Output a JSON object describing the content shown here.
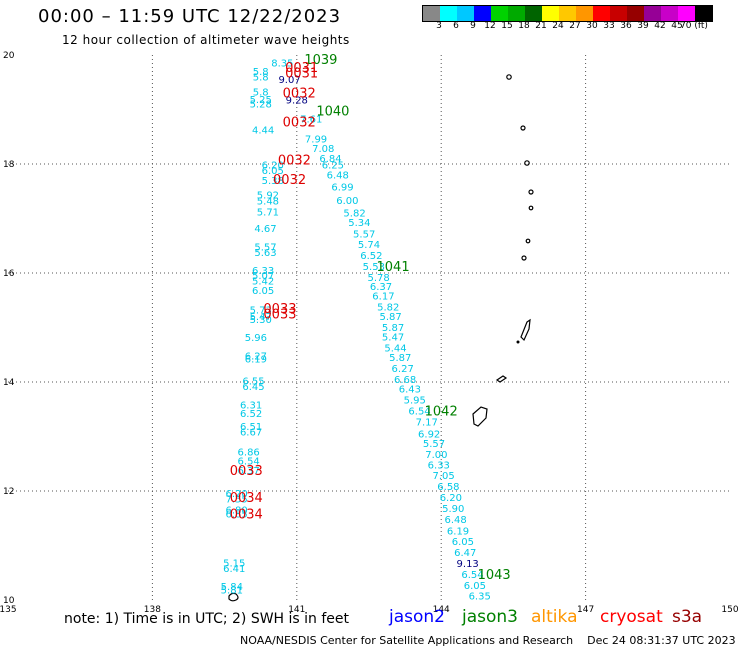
{
  "header": {
    "title": "00:00 – 11:59 UTC 12/22/2023",
    "subtitle": "12 hour collection of altimeter wave heights"
  },
  "colorbar": {
    "colors": [
      "#888888",
      "#00ffff",
      "#00c8ff",
      "#0000ff",
      "#00d200",
      "#00aa00",
      "#006400",
      "#ffff00",
      "#ffc800",
      "#ff9600",
      "#ff0000",
      "#c80000",
      "#960000",
      "#960096",
      "#c800c8",
      "#ff00ff",
      "#000000"
    ],
    "labels": [
      "3",
      "6",
      "9",
      "12",
      "15",
      "18",
      "21",
      "24",
      "27",
      "30",
      "33",
      "36",
      "39",
      "42",
      "45",
      "70 (ft)"
    ]
  },
  "footer": {
    "note": "note: 1) Time is in UTC; 2) SWH is in feet",
    "missions": [
      {
        "name": "jason2",
        "color": "#0000ff"
      },
      {
        "name": "jason3",
        "color": "#008000"
      },
      {
        "name": "altika",
        "color": "#ff9600"
      },
      {
        "name": "cryosat",
        "color": "#ff0000"
      },
      {
        "name": "s3a",
        "color": "#960000"
      }
    ],
    "credit": "NOAA/NESDIS Center for Satellite Applications and Research    Dec 24 08:31:37 UTC 2023"
  },
  "chart_data": {
    "type": "scatter",
    "title": "00:00 – 11:59 UTC 12/22/2023",
    "subtitle": "12 hour collection of altimeter wave heights",
    "xlim": [
      135,
      150
    ],
    "ylim": [
      10,
      20
    ],
    "x_ticks": [
      135,
      138,
      141,
      144,
      147,
      150
    ],
    "y_ticks": [
      10,
      12,
      14,
      16,
      18,
      20
    ],
    "grid": true,
    "colors": {
      "cyan": "#00c8e6",
      "green": "#008000",
      "red": "#dd0000",
      "navy": "#000080",
      "land": "#000000"
    },
    "series": [
      {
        "name": "track-west-descending",
        "points": [
          {
            "lon": 140.7,
            "lat": 19.85,
            "label": "8.35"
          },
          {
            "lon": 140.25,
            "lat": 19.7,
            "label": "5.8"
          },
          {
            "lon": 140.25,
            "lat": 19.6,
            "label": "5.8"
          },
          {
            "lon": 140.25,
            "lat": 19.32,
            "label": "5.8"
          },
          {
            "lon": 140.25,
            "lat": 19.18,
            "label": "5.25"
          },
          {
            "lon": 140.25,
            "lat": 19.1,
            "label": "5.28"
          },
          {
            "lon": 140.3,
            "lat": 18.62,
            "label": "4.44"
          },
          {
            "lon": 140.5,
            "lat": 17.98,
            "label": "6.20"
          },
          {
            "lon": 140.5,
            "lat": 17.88,
            "label": "6.05"
          },
          {
            "lon": 140.5,
            "lat": 17.7,
            "label": "5.38"
          },
          {
            "lon": 140.4,
            "lat": 17.43,
            "label": "5.92"
          },
          {
            "lon": 140.4,
            "lat": 17.32,
            "label": "5.48"
          },
          {
            "lon": 140.4,
            "lat": 17.12,
            "label": "5.71"
          },
          {
            "lon": 140.35,
            "lat": 16.82,
            "label": "4.67"
          },
          {
            "lon": 140.35,
            "lat": 16.48,
            "label": "5.57"
          },
          {
            "lon": 140.35,
            "lat": 16.38,
            "label": "5.63"
          },
          {
            "lon": 140.3,
            "lat": 16.05,
            "label": "6.33"
          },
          {
            "lon": 140.3,
            "lat": 15.95,
            "label": "5.07"
          },
          {
            "lon": 140.3,
            "lat": 15.85,
            "label": "5.42"
          },
          {
            "lon": 140.3,
            "lat": 15.68,
            "label": "6.05"
          },
          {
            "lon": 140.25,
            "lat": 15.32,
            "label": "5.73"
          },
          {
            "lon": 140.25,
            "lat": 15.2,
            "label": "5.47"
          },
          {
            "lon": 140.25,
            "lat": 15.15,
            "label": "5.30"
          },
          {
            "lon": 140.15,
            "lat": 14.82,
            "label": "5.96"
          },
          {
            "lon": 140.15,
            "lat": 14.48,
            "label": "6.27"
          },
          {
            "lon": 140.15,
            "lat": 14.42,
            "label": "6.19"
          },
          {
            "lon": 140.1,
            "lat": 14.02,
            "label": "6.55"
          },
          {
            "lon": 140.1,
            "lat": 13.92,
            "label": "6.45"
          },
          {
            "lon": 140.05,
            "lat": 13.58,
            "label": "6.31"
          },
          {
            "lon": 140.05,
            "lat": 13.42,
            "label": "6.52"
          },
          {
            "lon": 140.05,
            "lat": 13.18,
            "label": "6.51"
          },
          {
            "lon": 140.05,
            "lat": 13.08,
            "label": "6.67"
          },
          {
            "lon": 140.0,
            "lat": 12.72,
            "label": "6.86"
          },
          {
            "lon": 140.0,
            "lat": 12.55,
            "label": "6.54"
          },
          {
            "lon": 140.0,
            "lat": 12.38,
            "label": "6.37"
          },
          {
            "lon": 139.75,
            "lat": 11.95,
            "label": "6.20"
          },
          {
            "lon": 139.75,
            "lat": 11.85,
            "label": "7.55"
          },
          {
            "lon": 139.75,
            "lat": 11.65,
            "label": "6.80"
          },
          {
            "lon": 139.75,
            "lat": 11.58,
            "label": "6.85"
          },
          {
            "lon": 139.7,
            "lat": 10.68,
            "label": "5.15"
          },
          {
            "lon": 139.7,
            "lat": 10.58,
            "label": "6.41"
          },
          {
            "lon": 139.65,
            "lat": 10.25,
            "label": "5.84"
          },
          {
            "lon": 139.65,
            "lat": 10.18,
            "label": "5.81"
          }
        ]
      },
      {
        "name": "track-east-descending",
        "points": [
          {
            "lon": 140.85,
            "lat": 19.55,
            "label": "9.07"
          },
          {
            "lon": 141.0,
            "lat": 19.17,
            "label": "9.28"
          },
          {
            "lon": 141.3,
            "lat": 18.83,
            "label": "7.61"
          },
          {
            "lon": 141.4,
            "lat": 18.46,
            "label": "7.99"
          },
          {
            "lon": 141.55,
            "lat": 18.28,
            "label": "7.08"
          },
          {
            "lon": 141.7,
            "lat": 18.1,
            "label": "6.84"
          },
          {
            "lon": 141.75,
            "lat": 17.98,
            "label": "6.25"
          },
          {
            "lon": 141.85,
            "lat": 17.8,
            "label": "6.48"
          },
          {
            "lon": 141.95,
            "lat": 17.58,
            "label": "6.99"
          },
          {
            "lon": 142.05,
            "lat": 17.33,
            "label": "6.00"
          },
          {
            "lon": 142.2,
            "lat": 17.1,
            "label": "5.82"
          },
          {
            "lon": 142.3,
            "lat": 16.93,
            "label": "5.34"
          },
          {
            "lon": 142.4,
            "lat": 16.72,
            "label": "5.57"
          },
          {
            "lon": 142.5,
            "lat": 16.52,
            "label": "5.74"
          },
          {
            "lon": 142.55,
            "lat": 16.32,
            "label": "6.52"
          },
          {
            "lon": 142.6,
            "lat": 16.12,
            "label": "5.53"
          },
          {
            "lon": 142.7,
            "lat": 15.92,
            "label": "5.78"
          },
          {
            "lon": 142.75,
            "lat": 15.75,
            "label": "6.37"
          },
          {
            "lon": 142.8,
            "lat": 15.58,
            "label": "6.17"
          },
          {
            "lon": 142.9,
            "lat": 15.38,
            "label": "5.82"
          },
          {
            "lon": 142.95,
            "lat": 15.2,
            "label": "5.87"
          },
          {
            "lon": 143.0,
            "lat": 15.0,
            "label": "5.87"
          },
          {
            "lon": 143.0,
            "lat": 14.83,
            "label": "5.47"
          },
          {
            "lon": 143.05,
            "lat": 14.62,
            "label": "5.44"
          },
          {
            "lon": 143.15,
            "lat": 14.45,
            "label": "5.87"
          },
          {
            "lon": 143.2,
            "lat": 14.25,
            "label": "6.27"
          },
          {
            "lon": 143.25,
            "lat": 14.05,
            "label": "6.68"
          },
          {
            "lon": 143.35,
            "lat": 13.87,
            "label": "6.43"
          },
          {
            "lon": 143.45,
            "lat": 13.67,
            "label": "5.95"
          },
          {
            "lon": 143.55,
            "lat": 13.47,
            "label": "6.54"
          },
          {
            "lon": 143.7,
            "lat": 13.27,
            "label": "7.17"
          },
          {
            "lon": 143.75,
            "lat": 13.05,
            "label": "6.92"
          },
          {
            "lon": 143.85,
            "lat": 12.87,
            "label": "5.57"
          },
          {
            "lon": 143.9,
            "lat": 12.67,
            "label": "7.00"
          },
          {
            "lon": 143.95,
            "lat": 12.48,
            "label": "6.33"
          },
          {
            "lon": 144.05,
            "lat": 12.28,
            "label": "7.05"
          },
          {
            "lon": 144.15,
            "lat": 12.08,
            "label": "6.58"
          },
          {
            "lon": 144.2,
            "lat": 11.88,
            "label": "6.20"
          },
          {
            "lon": 144.25,
            "lat": 11.68,
            "label": "5.90"
          },
          {
            "lon": 144.3,
            "lat": 11.48,
            "label": "6.48"
          },
          {
            "lon": 144.35,
            "lat": 11.27,
            "label": "6.19"
          },
          {
            "lon": 144.45,
            "lat": 11.07,
            "label": "6.05"
          },
          {
            "lon": 144.5,
            "lat": 10.87,
            "label": "6.47"
          },
          {
            "lon": 144.55,
            "lat": 10.67,
            "label": "9.13"
          },
          {
            "lon": 144.65,
            "lat": 10.47,
            "label": "6.54"
          },
          {
            "lon": 144.7,
            "lat": 10.27,
            "label": "6.05"
          },
          {
            "lon": 144.8,
            "lat": 10.07,
            "label": "6.35"
          }
        ]
      },
      {
        "name": "time-stamps-green",
        "points": [
          {
            "lon": 141.5,
            "lat": 19.92,
            "label": "1039"
          },
          {
            "lon": 141.75,
            "lat": 18.97,
            "label": "1040"
          },
          {
            "lon": 143.0,
            "lat": 16.12,
            "label": "1041"
          },
          {
            "lon": 144.0,
            "lat": 13.47,
            "label": "1042"
          },
          {
            "lon": 145.1,
            "lat": 10.47,
            "label": "1043"
          }
        ]
      },
      {
        "name": "time-stamps-red",
        "points": [
          {
            "lon": 141.1,
            "lat": 19.77,
            "label": "0031"
          },
          {
            "lon": 141.1,
            "lat": 19.67,
            "label": "0031"
          },
          {
            "lon": 141.05,
            "lat": 19.3,
            "label": "0032"
          },
          {
            "lon": 141.05,
            "lat": 18.77,
            "label": "0032"
          },
          {
            "lon": 140.95,
            "lat": 18.07,
            "label": "0032"
          },
          {
            "lon": 140.85,
            "lat": 17.72,
            "label": "0032"
          },
          {
            "lon": 140.65,
            "lat": 15.35,
            "label": "0033"
          },
          {
            "lon": 140.65,
            "lat": 15.25,
            "label": "0033"
          },
          {
            "lon": 139.95,
            "lat": 12.38,
            "label": "0033"
          },
          {
            "lon": 139.95,
            "lat": 11.88,
            "label": "0034"
          },
          {
            "lon": 139.95,
            "lat": 11.58,
            "label": "0034"
          }
        ]
      }
    ]
  }
}
